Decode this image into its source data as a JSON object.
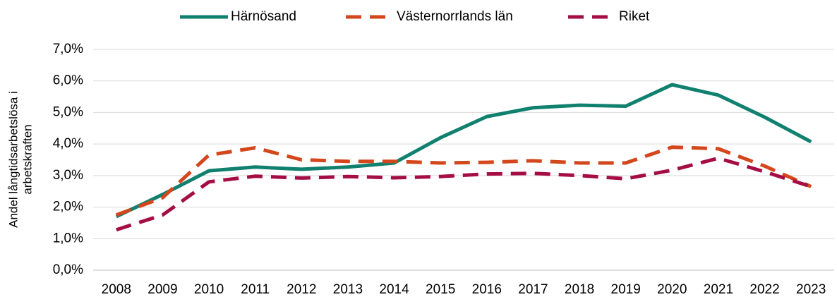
{
  "chart_data": {
    "type": "line",
    "ylabel_lines": [
      "Andel långtidsarbetslösa i",
      "arbetskraften"
    ],
    "categories": [
      "2008",
      "2009",
      "2010",
      "2011",
      "2012",
      "2013",
      "2014",
      "2015",
      "2016",
      "2017",
      "2018",
      "2019",
      "2020",
      "2021",
      "2022",
      "2023"
    ],
    "series": [
      {
        "name": "Härnösand",
        "color": "#10806f",
        "dashed": false,
        "values": [
          1.7,
          2.4,
          3.15,
          3.27,
          3.2,
          3.27,
          3.4,
          4.2,
          4.87,
          5.15,
          5.23,
          5.2,
          5.88,
          5.55,
          4.85,
          4.07
        ]
      },
      {
        "name": "Västernorrlands län",
        "color": "#d4461c",
        "dashed": true,
        "values": [
          1.75,
          2.3,
          3.65,
          3.88,
          3.5,
          3.45,
          3.45,
          3.4,
          3.42,
          3.47,
          3.4,
          3.4,
          3.9,
          3.85,
          3.3,
          2.65
        ]
      },
      {
        "name": "Riket",
        "color": "#a50d45",
        "dashed": true,
        "values": [
          1.28,
          1.75,
          2.8,
          2.98,
          2.92,
          2.97,
          2.93,
          2.97,
          3.05,
          3.07,
          3.0,
          2.9,
          3.17,
          3.55,
          3.12,
          2.65
        ]
      }
    ],
    "ylim": [
      0,
      7
    ],
    "yticks": [
      {
        "value": 0,
        "label": "0,0%"
      },
      {
        "value": 1,
        "label": "1,0%"
      },
      {
        "value": 2,
        "label": "2,0%"
      },
      {
        "value": 3,
        "label": "3,0%"
      },
      {
        "value": 4,
        "label": "4,0%"
      },
      {
        "value": 5,
        "label": "5,0%"
      },
      {
        "value": 6,
        "label": "6,0%"
      },
      {
        "value": 7,
        "label": "7,0%"
      }
    ],
    "grid": true,
    "legend": "top"
  }
}
